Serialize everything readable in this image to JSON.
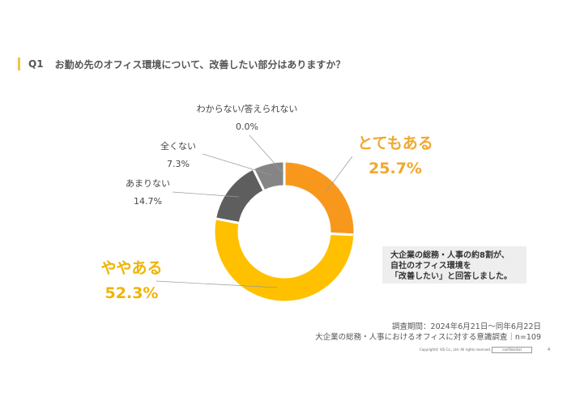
{
  "header": {
    "q": "Q1",
    "title": "お勤め先のオフィス環境について、改善したい部分はありますか？"
  },
  "chart_data": {
    "type": "pie",
    "donut": true,
    "categories": [
      "とてもある",
      "ややある",
      "あまりない",
      "全くない",
      "わからない/答えられない"
    ],
    "values": [
      25.7,
      52.3,
      14.7,
      7.3,
      0.0
    ],
    "value_labels": [
      "25.7%",
      "52.3%",
      "14.7%",
      "7.3%",
      "0.0%"
    ],
    "colors": [
      "#F7981D",
      "#FFC000",
      "#5E5E5E",
      "#858585",
      "#BBBBBB"
    ],
    "label_colors": {
      "highlight": "#F0A830",
      "normal": "#444444"
    }
  },
  "note": {
    "lines": [
      "大企業の総務・人事の約8割が、",
      "自社のオフィス環境を",
      "「改善したい」と回答しました。"
    ]
  },
  "source": {
    "period": "調査期間：2024年6月21日〜同年6月22日",
    "survey": "大企業の総務・人事におけるオフィスに対する意識調査｜n=109"
  },
  "footer": {
    "copyright": "Copyright© VIS Co., Ltd. All rights reserved.",
    "confidential": "confidential",
    "page": "4"
  }
}
